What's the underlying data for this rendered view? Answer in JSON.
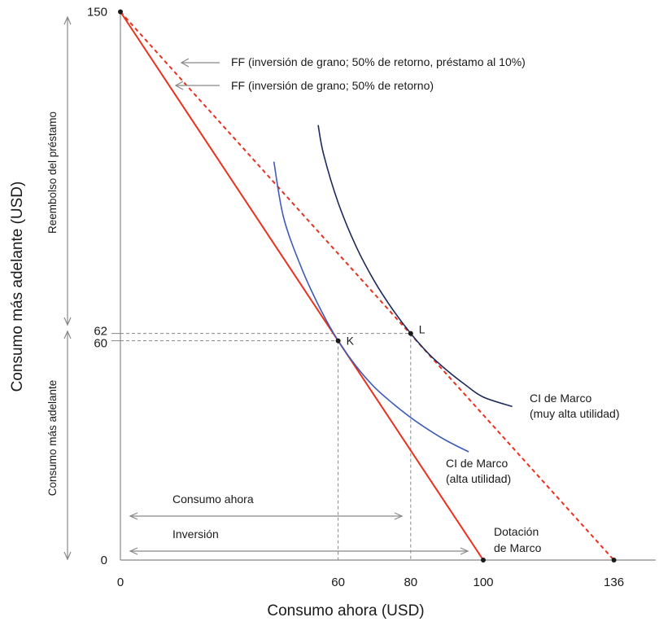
{
  "chart_data": {
    "type": "line",
    "xlabel": "Consumo ahora (USD)",
    "ylabel": "Consumo más adelante (USD)",
    "xlim": [
      0,
      150
    ],
    "ylim": [
      0,
      150
    ],
    "x_ticks": [
      0,
      60,
      80,
      100,
      136
    ],
    "y_ticks": [
      0,
      60,
      62,
      150
    ],
    "series": [
      {
        "name": "FF (inversión de grano; 50% de retorno)",
        "style": "solid",
        "color": "#e8321e",
        "x": [
          0,
          100
        ],
        "y": [
          150,
          0
        ]
      },
      {
        "name": "FF (inversión de grano; 50% de retorno, préstamo al 10%)",
        "style": "dashed",
        "color": "#e8321e",
        "x": [
          0,
          136
        ],
        "y": [
          150,
          0
        ]
      },
      {
        "name": "CI de Marco (alta utilidad)",
        "style": "solid",
        "color": "#3d5bb8",
        "x": [
          42.3,
          45,
          50,
          55,
          60,
          65,
          70,
          75,
          80,
          85,
          90,
          96
        ],
        "y": [
          109,
          93.6,
          79.7,
          68.9,
          60.0,
          53.0,
          47.3,
          42.9,
          39.0,
          35.6,
          32.6,
          29.6
        ]
      },
      {
        "name": "CI de Marco (muy alta utilidad)",
        "style": "solid",
        "color": "#1c2a5c",
        "x": [
          54.5,
          56,
          60,
          65,
          70,
          75,
          80,
          85,
          90,
          95,
          100,
          108
        ],
        "y": [
          119,
          111,
          97.8,
          85.7,
          76.3,
          68.6,
          62.0,
          56.4,
          51.9,
          48.0,
          44.6,
          42.0
        ]
      }
    ],
    "points": [
      {
        "label": "",
        "x": 0,
        "y": 150
      },
      {
        "label": "K",
        "x": 60,
        "y": 60
      },
      {
        "label": "L",
        "x": 80,
        "y": 62
      },
      {
        "label": "",
        "x": 100,
        "y": 0
      },
      {
        "label": "",
        "x": 136,
        "y": 0
      }
    ],
    "annotations": {
      "ff_loan": "FF (inversión de grano; 50% de retorno, préstamo al 10%)",
      "ff_basic": "FF (inversión de grano; 50% de retorno)",
      "ic_very_high": [
        "CI de Marco",
        "(muy alta utilidad)"
      ],
      "ic_high": [
        "CI de Marco",
        "(alta utilidad)"
      ],
      "endowment": [
        "Dotación",
        "de Marco"
      ],
      "consumption_now": "Consumo ahora",
      "investment": "Inversión",
      "loan_repayment": "Reembolso del préstamo",
      "later_consumption": "Consumo más adelante"
    },
    "colors": {
      "red": "#e8321e",
      "blue": "#3d5bb8",
      "navy": "#1c2a5c",
      "grey": "#888888"
    }
  }
}
